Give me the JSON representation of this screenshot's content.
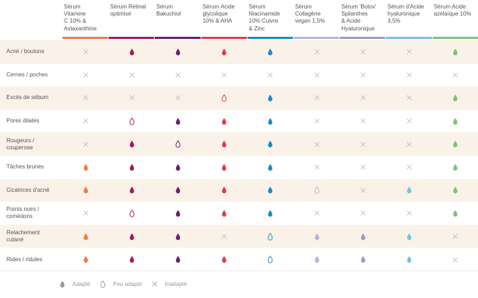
{
  "columns": [
    {
      "label": "Sérum\nVitamine\nC 10% &\nAstaxanthine",
      "color": "#f07b3f"
    },
    {
      "label": "Sérum Rétinal\noptimisé",
      "color": "#a3195b"
    },
    {
      "label": "Sérum\nBakuchiol",
      "color": "#6b1f6e"
    },
    {
      "label": "Sérum Acide\nglycolique\n10% & AHA",
      "color": "#e63946"
    },
    {
      "label": "Sérum\nNiacinamide\n10% Cuivre\n& Zinc",
      "color": "#1a8bc4"
    },
    {
      "label": "Sérum\nCollagène\nvegan 1,5%",
      "color": "#b3b5d9"
    },
    {
      "label": "Sérum 'Botox'\nSpilanthes\n& Acide\nHyaluronique",
      "color": "#9b9bc4"
    },
    {
      "label": "Sérum d'Acide\nhyaluronique\n3,5%",
      "color": "#6cc5e3"
    },
    {
      "label": "Sérum Acide\nazélaïque 10%",
      "color": "#7cc47a"
    }
  ],
  "rows": [
    {
      "label": "Acné / boutons",
      "cells": [
        "x",
        "f",
        "f",
        "f",
        "f",
        "x",
        "x",
        "x",
        "f"
      ]
    },
    {
      "label": "Cernes / poches",
      "cells": [
        "x",
        "x",
        "x",
        "x",
        "x",
        "x",
        "x",
        "x",
        "x"
      ]
    },
    {
      "label": "Excès de sébum",
      "cells": [
        "x",
        "x",
        "x",
        "o",
        "f",
        "x",
        "x",
        "x",
        "f"
      ]
    },
    {
      "label": "Pores dilatés",
      "cells": [
        "x",
        "o",
        "f",
        "f",
        "f",
        "x",
        "x",
        "x",
        "f"
      ]
    },
    {
      "label": "Rougeurs /\ncouperose",
      "cells": [
        "x",
        "f",
        "o",
        "f",
        "f",
        "x",
        "x",
        "x",
        "f"
      ]
    },
    {
      "label": "Tâches brunes",
      "cells": [
        "f",
        "f",
        "f",
        "f",
        "f",
        "x",
        "x",
        "x",
        "f"
      ]
    },
    {
      "label": "Cicatrices d'acné",
      "cells": [
        "f",
        "f",
        "f",
        "f",
        "f",
        "o",
        "x",
        "f",
        "f"
      ]
    },
    {
      "label": "Points noirs /\ncomédons",
      "cells": [
        "x",
        "o",
        "f",
        "f",
        "f",
        "x",
        "x",
        "x",
        "f"
      ]
    },
    {
      "label": "Relachement\ncutané",
      "cells": [
        "f",
        "f",
        "f",
        "x",
        "o",
        "f",
        "f",
        "f",
        "x"
      ]
    },
    {
      "label": "Rides / ridules",
      "cells": [
        "f",
        "f",
        "f",
        "f",
        "o",
        "f",
        "f",
        "f",
        "x"
      ]
    }
  ],
  "legend": [
    {
      "type": "f",
      "label": "Adapté"
    },
    {
      "type": "o",
      "label": "Peu adapté"
    },
    {
      "type": "x",
      "label": "Inadapté"
    }
  ],
  "colors": {
    "row_shade": "#faf1e9",
    "cross": "#bbbbbb",
    "legend_icon": "#999999"
  }
}
